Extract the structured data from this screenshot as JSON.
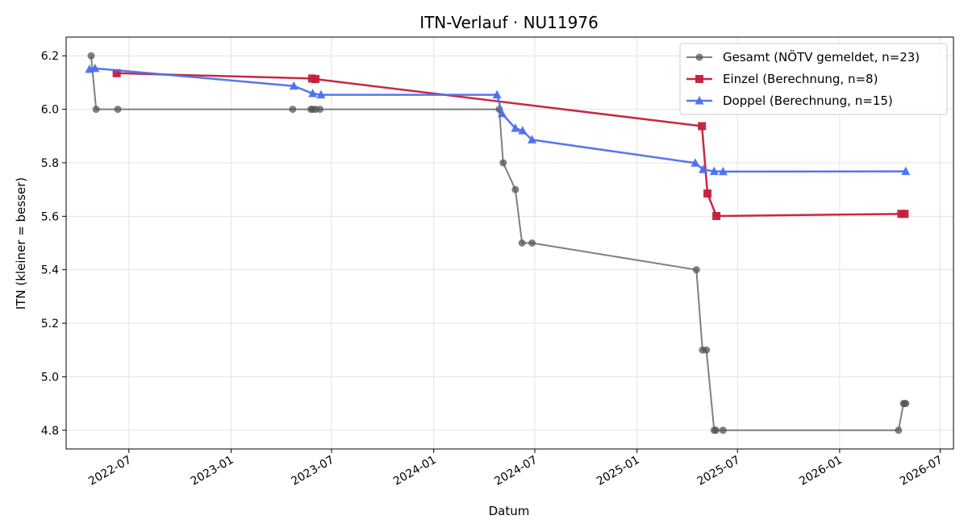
{
  "chart_data": {
    "type": "line",
    "title": "ITN-Verlauf · NU11976",
    "xlabel": "Datum",
    "ylabel": "ITN  (kleiner = besser)",
    "xlim": [
      "2022-03-10",
      "2026-07-25"
    ],
    "ylim": [
      4.73,
      6.27
    ],
    "x_ticks": [
      {
        "date": "2022-07-01",
        "label": "2022-07"
      },
      {
        "date": "2023-01-01",
        "label": "2023-01"
      },
      {
        "date": "2023-07-01",
        "label": "2023-07"
      },
      {
        "date": "2024-01-01",
        "label": "2024-01"
      },
      {
        "date": "2024-07-01",
        "label": "2024-07"
      },
      {
        "date": "2025-01-01",
        "label": "2025-01"
      },
      {
        "date": "2025-07-01",
        "label": "2025-07"
      },
      {
        "date": "2026-01-01",
        "label": "2026-01"
      },
      {
        "date": "2026-07-01",
        "label": "2026-07"
      }
    ],
    "y_ticks": [
      {
        "value": 4.8,
        "label": "4.8"
      },
      {
        "value": 5.0,
        "label": "5.0"
      },
      {
        "value": 5.2,
        "label": "5.2"
      },
      {
        "value": 5.4,
        "label": "5.4"
      },
      {
        "value": 5.6,
        "label": "5.6"
      },
      {
        "value": 5.8,
        "label": "5.8"
      },
      {
        "value": 6.0,
        "label": "6.0"
      },
      {
        "value": 6.2,
        "label": "6.2"
      }
    ],
    "grid": true,
    "legend_position": "top-right",
    "series": [
      {
        "name": "Gesamt (NÖTV gemeldet, n=23)",
        "color": "#555555",
        "marker": "circle",
        "points": [
          [
            "2022-04-24",
            6.2
          ],
          [
            "2022-05-03",
            6.0
          ],
          [
            "2022-06-11",
            6.0
          ],
          [
            "2023-04-22",
            6.0
          ],
          [
            "2023-05-25",
            6.0
          ],
          [
            "2023-05-28",
            6.0
          ],
          [
            "2023-06-02",
            6.0
          ],
          [
            "2023-06-10",
            6.0
          ],
          [
            "2024-04-28",
            6.0
          ],
          [
            "2024-05-05",
            5.8
          ],
          [
            "2024-05-27",
            5.7
          ],
          [
            "2024-06-08",
            5.5
          ],
          [
            "2024-06-26",
            5.5
          ],
          [
            "2025-04-18",
            5.4
          ],
          [
            "2025-04-29",
            5.1
          ],
          [
            "2025-05-06",
            5.1
          ],
          [
            "2025-05-20",
            4.8
          ],
          [
            "2025-05-23",
            4.8
          ],
          [
            "2025-06-05",
            4.8
          ],
          [
            "2026-04-17",
            4.8
          ],
          [
            "2026-04-26",
            4.9
          ],
          [
            "2026-04-28",
            4.9
          ],
          [
            "2026-04-30",
            4.9
          ]
        ]
      },
      {
        "name": "Einzel (Berechnung, n=8)",
        "color": "#c41e3a",
        "marker": "square",
        "points": [
          [
            "2022-06-09",
            6.135
          ],
          [
            "2023-05-27",
            6.115
          ],
          [
            "2023-06-02",
            6.113
          ],
          [
            "2025-04-28",
            5.937
          ],
          [
            "2025-05-08",
            5.685
          ],
          [
            "2025-05-24",
            5.601
          ],
          [
            "2026-04-22",
            5.609
          ],
          [
            "2026-04-28",
            5.609
          ]
        ]
      },
      {
        "name": "Doppel (Berechnung, n=15)",
        "color": "#4d6fef",
        "marker": "triangle",
        "points": [
          [
            "2022-04-21",
            6.15
          ],
          [
            "2022-05-01",
            6.153
          ],
          [
            "2023-04-24",
            6.087
          ],
          [
            "2023-05-28",
            6.059
          ],
          [
            "2023-06-12",
            6.054
          ],
          [
            "2024-04-24",
            6.054
          ],
          [
            "2024-05-03",
            5.984
          ],
          [
            "2024-05-27",
            5.929
          ],
          [
            "2024-06-09",
            5.92
          ],
          [
            "2024-06-26",
            5.886
          ],
          [
            "2025-04-16",
            5.799
          ],
          [
            "2025-04-30",
            5.775
          ],
          [
            "2025-05-20",
            5.768
          ],
          [
            "2025-06-05",
            5.767
          ],
          [
            "2026-04-30",
            5.768
          ]
        ]
      }
    ]
  }
}
